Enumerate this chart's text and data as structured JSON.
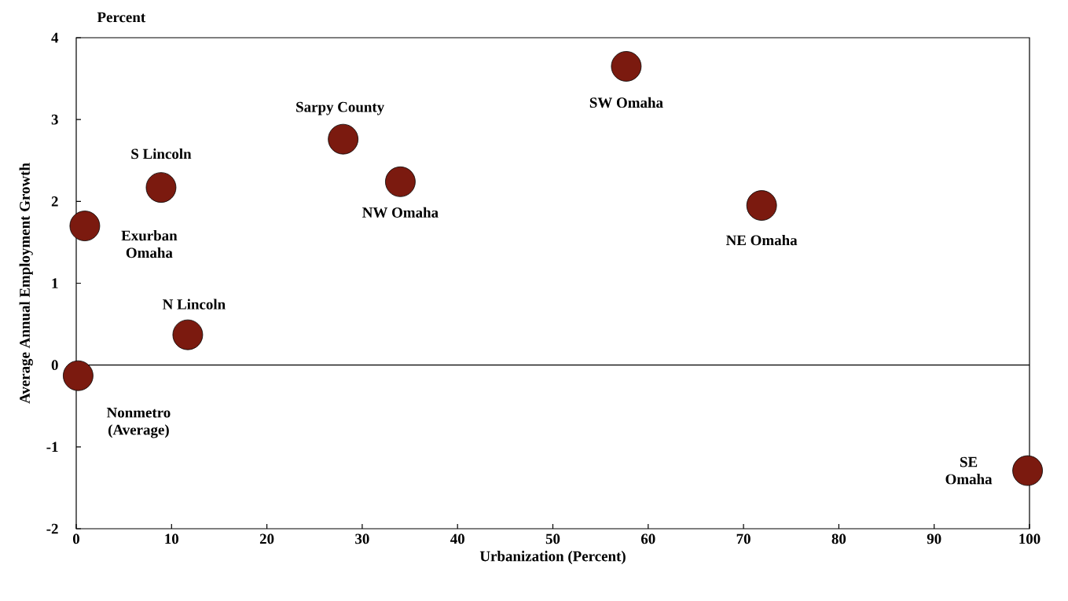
{
  "chart_data": {
    "type": "scatter",
    "xlabel": "Urbanization (Percent)",
    "ylabel": "Average Annual Employment Growth",
    "x": [
      0.9,
      8.9,
      28.0,
      34.0,
      57.7,
      71.9,
      11.7,
      0.2,
      99.8
    ],
    "values": [
      1.7,
      2.17,
      2.76,
      2.24,
      3.65,
      1.95,
      0.37,
      -0.13,
      -1.29
    ],
    "color": "#7b1a0f",
    "marker": "circle",
    "xlim": [
      0,
      100
    ],
    "ylim": [
      -2,
      4
    ],
    "xticks": [
      0,
      10,
      20,
      30,
      40,
      50,
      60,
      70,
      80,
      90,
      100
    ],
    "yticks": [
      -2,
      -1,
      0,
      1,
      2,
      3,
      4
    ],
    "ref_lines": [
      {
        "axis": "y",
        "value": 0
      }
    ],
    "annotations": [
      "Percent",
      {
        "text": "Exurban Omaha",
        "x": 0.9,
        "y": 1.7
      },
      {
        "text": "S Lincoln",
        "x": 8.9,
        "y": 2.17
      },
      {
        "text": "Sarpy County",
        "x": 28.0,
        "y": 2.76
      },
      {
        "text": "NW Omaha",
        "x": 34.0,
        "y": 2.24
      },
      {
        "text": "SW Omaha",
        "x": 57.7,
        "y": 3.65
      },
      {
        "text": "NE Omaha",
        "x": 71.9,
        "y": 1.95
      },
      {
        "text": "N Lincoln",
        "x": 11.7,
        "y": 0.37
      },
      {
        "text": "Nonmetro (Average)",
        "x": 0.2,
        "y": -0.13
      },
      {
        "text": "SE Omaha",
        "x": 99.8,
        "y": -1.29
      }
    ]
  }
}
